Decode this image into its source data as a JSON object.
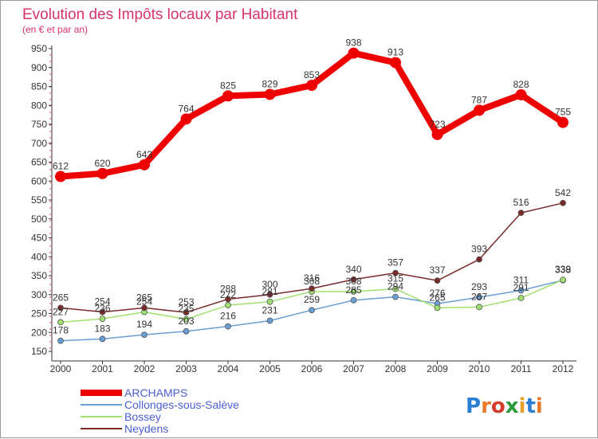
{
  "header": {
    "title": "Evolution des Impôts locaux par Habitant",
    "subtitle": "(en € et par an)"
  },
  "logo": {
    "text": "Proxiti",
    "colors": [
      "#2a7fd4",
      "#e8782a",
      "#d63a2a",
      "#2a9a3a",
      "#e8a02a",
      "#2a7fd4",
      "#e8782a"
    ]
  },
  "chart_data": {
    "type": "line",
    "x": [
      "2000",
      "2001",
      "2002",
      "2003",
      "2004",
      "2005",
      "2006",
      "2007",
      "2008",
      "2009",
      "2010",
      "2011",
      "2012"
    ],
    "yticks": [
      150,
      200,
      250,
      300,
      350,
      400,
      450,
      500,
      550,
      600,
      650,
      700,
      750,
      800,
      850,
      900,
      950
    ],
    "ylim": [
      150,
      950
    ],
    "grid": false,
    "legend_position": "bottom-left",
    "series": [
      {
        "name": "ARCHAMPS",
        "color": "#ee0000",
        "width": 8,
        "marker": 7,
        "values": [
          612,
          620,
          643,
          764,
          825,
          829,
          853,
          938,
          913,
          723,
          787,
          828,
          755
        ]
      },
      {
        "name": "Collonges-sous-Salève",
        "color": "#6a9fd4",
        "width": 1.5,
        "marker": 3.5,
        "values": [
          178,
          183,
          194,
          203,
          216,
          231,
          259,
          285,
          294,
          276,
          293,
          311,
          338
        ]
      },
      {
        "name": "Bossey",
        "color": "#9fe070",
        "width": 1.5,
        "marker": 3.5,
        "values": [
          227,
          236,
          254,
          235,
          272,
          281,
          308,
          308,
          315,
          265,
          267,
          291,
          339
        ]
      },
      {
        "name": "Neydens",
        "color": "#7a2a2a",
        "width": 1.5,
        "marker": 3.5,
        "values": [
          265,
          254,
          265,
          253,
          288,
          300,
          316,
          340,
          357,
          337,
          393,
          516,
          542
        ]
      }
    ]
  }
}
